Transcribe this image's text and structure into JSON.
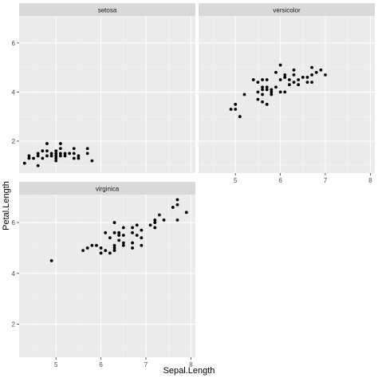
{
  "chart_data": {
    "type": "scatter",
    "xlabel": "Sepal.Length",
    "ylabel": "Petal.Length",
    "xlim": [
      4.18,
      8.1
    ],
    "ylim": [
      0.7,
      7.1
    ],
    "x_ticks": [
      5,
      6,
      7,
      8
    ],
    "y_ticks": [
      2,
      4,
      6
    ],
    "grid": true,
    "panel_background": "#ebebeb",
    "strip_background": "#d9d9d9",
    "point_color": "#000000",
    "facets": [
      {
        "label": "setosa",
        "points": [
          [
            4.3,
            1.1
          ],
          [
            4.4,
            1.3
          ],
          [
            4.4,
            1.4
          ],
          [
            4.5,
            1.3
          ],
          [
            4.6,
            1.0
          ],
          [
            4.6,
            1.4
          ],
          [
            4.6,
            1.5
          ],
          [
            4.7,
            1.3
          ],
          [
            4.7,
            1.6
          ],
          [
            4.8,
            1.4
          ],
          [
            4.8,
            1.6
          ],
          [
            4.8,
            1.9
          ],
          [
            4.9,
            1.4
          ],
          [
            4.9,
            1.5
          ],
          [
            5.0,
            1.2
          ],
          [
            5.0,
            1.3
          ],
          [
            5.0,
            1.4
          ],
          [
            5.0,
            1.5
          ],
          [
            5.0,
            1.6
          ],
          [
            5.1,
            1.4
          ],
          [
            5.1,
            1.5
          ],
          [
            5.1,
            1.7
          ],
          [
            5.1,
            1.9
          ],
          [
            5.2,
            1.4
          ],
          [
            5.2,
            1.5
          ],
          [
            5.3,
            1.5
          ],
          [
            5.4,
            1.3
          ],
          [
            5.4,
            1.5
          ],
          [
            5.4,
            1.7
          ],
          [
            5.5,
            1.3
          ],
          [
            5.5,
            1.4
          ],
          [
            5.7,
            1.5
          ],
          [
            5.7,
            1.7
          ],
          [
            5.8,
            1.2
          ]
        ]
      },
      {
        "label": "versicolor",
        "points": [
          [
            4.9,
            3.3
          ],
          [
            5.0,
            3.3
          ],
          [
            5.0,
            3.5
          ],
          [
            5.1,
            3.0
          ],
          [
            5.2,
            3.9
          ],
          [
            5.4,
            4.5
          ],
          [
            5.5,
            3.7
          ],
          [
            5.5,
            4.0
          ],
          [
            5.5,
            4.4
          ],
          [
            5.6,
            3.6
          ],
          [
            5.6,
            3.9
          ],
          [
            5.6,
            4.1
          ],
          [
            5.6,
            4.2
          ],
          [
            5.6,
            4.5
          ],
          [
            5.7,
            3.5
          ],
          [
            5.7,
            4.1
          ],
          [
            5.7,
            4.2
          ],
          [
            5.7,
            4.5
          ],
          [
            5.8,
            3.9
          ],
          [
            5.8,
            4.0
          ],
          [
            5.8,
            4.1
          ],
          [
            5.9,
            4.2
          ],
          [
            5.9,
            4.8
          ],
          [
            6.0,
            4.0
          ],
          [
            6.0,
            4.5
          ],
          [
            6.0,
            5.1
          ],
          [
            6.1,
            4.0
          ],
          [
            6.1,
            4.6
          ],
          [
            6.1,
            4.7
          ],
          [
            6.2,
            4.3
          ],
          [
            6.2,
            4.5
          ],
          [
            6.3,
            4.4
          ],
          [
            6.3,
            4.7
          ],
          [
            6.3,
            4.9
          ],
          [
            6.4,
            4.3
          ],
          [
            6.4,
            4.5
          ],
          [
            6.5,
            4.6
          ],
          [
            6.6,
            4.4
          ],
          [
            6.6,
            4.6
          ],
          [
            6.7,
            4.4
          ],
          [
            6.7,
            4.7
          ],
          [
            6.7,
            5.0
          ],
          [
            6.8,
            4.8
          ],
          [
            6.9,
            4.9
          ],
          [
            7.0,
            4.7
          ]
        ]
      },
      {
        "label": "virginica",
        "points": [
          [
            4.9,
            4.5
          ],
          [
            5.6,
            4.9
          ],
          [
            5.7,
            5.0
          ],
          [
            5.8,
            5.1
          ],
          [
            5.9,
            5.1
          ],
          [
            6.0,
            4.8
          ],
          [
            6.0,
            5.0
          ],
          [
            6.1,
            4.9
          ],
          [
            6.1,
            5.6
          ],
          [
            6.2,
            4.8
          ],
          [
            6.2,
            5.4
          ],
          [
            6.3,
            4.9
          ],
          [
            6.3,
            5.0
          ],
          [
            6.3,
            5.1
          ],
          [
            6.3,
            5.6
          ],
          [
            6.3,
            6.0
          ],
          [
            6.4,
            5.3
          ],
          [
            6.4,
            5.5
          ],
          [
            6.4,
            5.6
          ],
          [
            6.5,
            5.1
          ],
          [
            6.5,
            5.2
          ],
          [
            6.5,
            5.5
          ],
          [
            6.5,
            5.8
          ],
          [
            6.7,
            5.0
          ],
          [
            6.7,
            5.2
          ],
          [
            6.7,
            5.6
          ],
          [
            6.7,
            5.8
          ],
          [
            6.8,
            5.5
          ],
          [
            6.8,
            5.9
          ],
          [
            6.9,
            5.1
          ],
          [
            6.9,
            5.4
          ],
          [
            6.9,
            5.7
          ],
          [
            7.1,
            5.9
          ],
          [
            7.2,
            5.8
          ],
          [
            7.2,
            6.0
          ],
          [
            7.2,
            6.1
          ],
          [
            7.3,
            6.3
          ],
          [
            7.4,
            6.1
          ],
          [
            7.6,
            6.6
          ],
          [
            7.7,
            6.1
          ],
          [
            7.7,
            6.7
          ],
          [
            7.7,
            6.9
          ],
          [
            7.9,
            6.4
          ]
        ]
      }
    ]
  }
}
